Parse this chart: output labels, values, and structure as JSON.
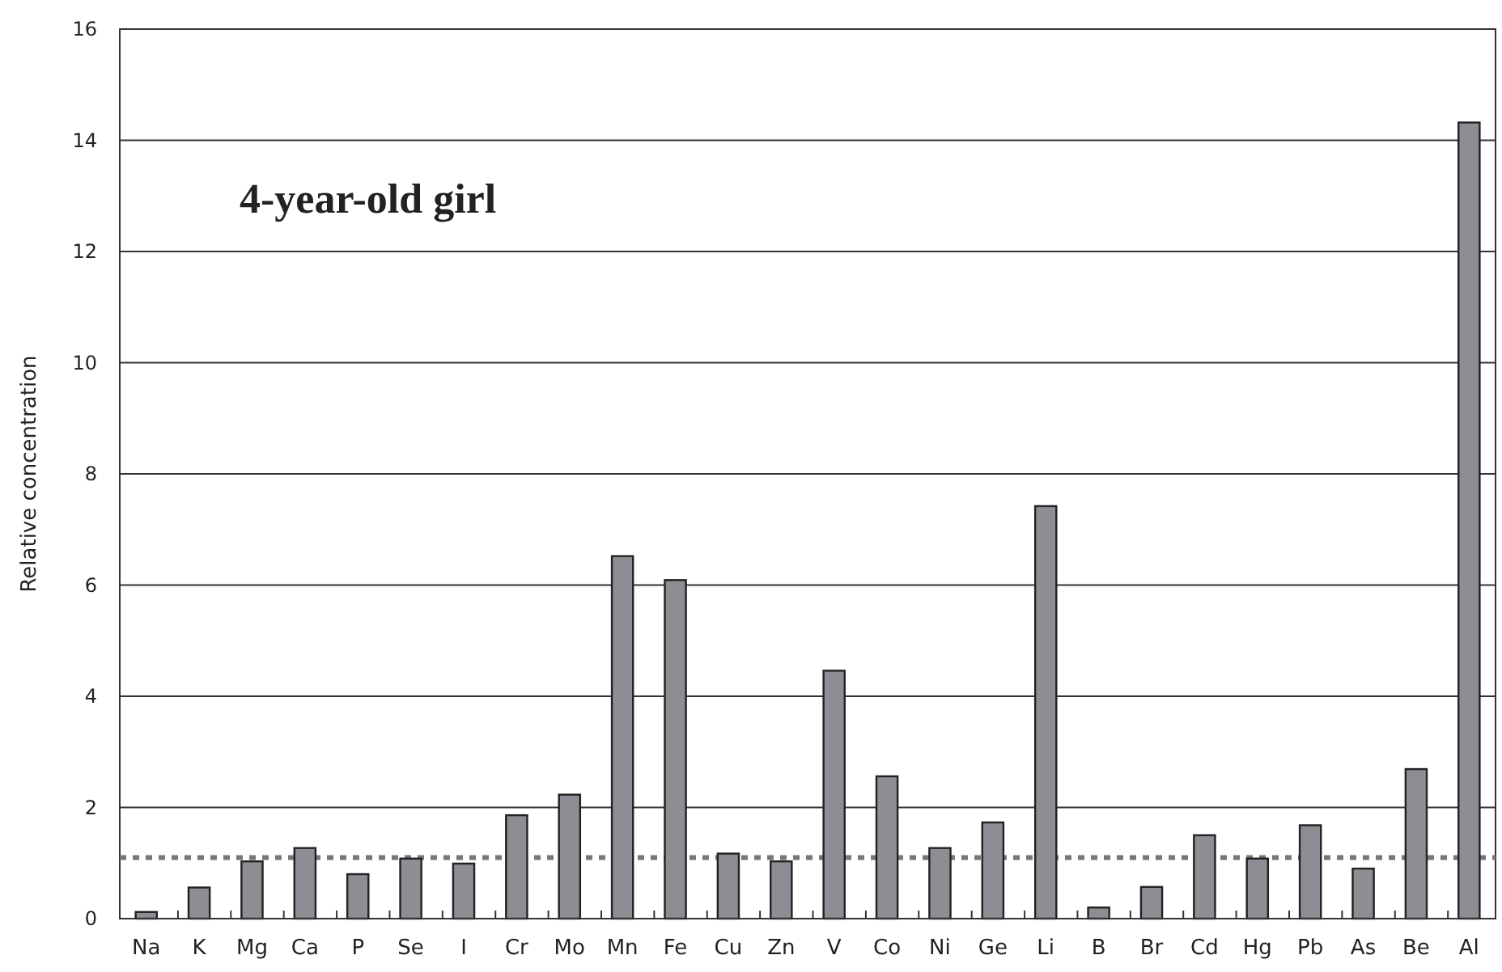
{
  "chart_data": {
    "type": "bar",
    "title": "4-year-old girl",
    "ylabel": "Relative concentration",
    "categories": [
      "Na",
      "K",
      "Mg",
      "Ca",
      "P",
      "Se",
      "I",
      "Cr",
      "Mo",
      "Mn",
      "Fe",
      "Cu",
      "Zn",
      "V",
      "Co",
      "Ni",
      "Ge",
      "Li",
      "B",
      "Br",
      "Cd",
      "Hg",
      "Pb",
      "As",
      "Be",
      "Al"
    ],
    "values": [
      0.12,
      0.56,
      1.03,
      1.27,
      0.8,
      1.08,
      0.99,
      1.86,
      2.23,
      6.52,
      6.09,
      1.17,
      1.03,
      4.46,
      2.56,
      1.27,
      1.73,
      7.42,
      0.2,
      0.57,
      1.5,
      1.08,
      1.68,
      0.9,
      2.69,
      14.32
    ],
    "color": "#8c8e94",
    "ylim": [
      0,
      16
    ],
    "yticks": [
      0,
      2,
      4,
      6,
      8,
      10,
      12,
      14,
      16
    ],
    "grid": "y",
    "ref_lines": [
      {
        "axis": "y",
        "value": 1.1,
        "color": "#777777",
        "line_style": "dotted"
      }
    ]
  }
}
